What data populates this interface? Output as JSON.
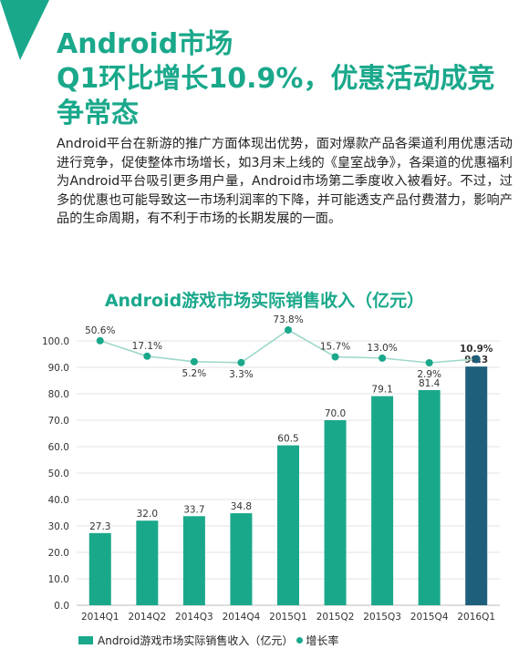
{
  "header": {
    "title_lines": [
      "Android市场",
      "Q1环比增长10.9%，优惠活动成竞",
      "争常态"
    ]
  },
  "paragraph": "Android平台在新游的推广方面体现出优势，面对爆款产品各渠道利用优惠活动进行竞争，促使整体市场增长，如3月末上线的《皇室战争》，各渠道的优惠福利为Android平台吸引更多用户量，Android市场第二季度收入被看好。不过，过多的优惠也可能导致这一市场利润率的下降，并可能透支产品付费潜力，影响产品的生命周期，有不利于市场的长期发展的一面。",
  "colors": {
    "accent": "#1aa88b",
    "highlight_bar": "#1e5f7b",
    "line": "#9fd7cb",
    "grid": "#e3e3e3"
  },
  "chart_data": {
    "type": "bar",
    "title": "Android游戏市场实际销售收入（亿元）",
    "categories": [
      "2014Q1",
      "2014Q2",
      "2014Q3",
      "2014Q4",
      "2015Q1",
      "2015Q2",
      "2015Q3",
      "2015Q4",
      "2016Q1"
    ],
    "ylim": [
      0,
      100
    ],
    "yticks": [
      "0.0",
      "10.0",
      "20.0",
      "30.0",
      "40.0",
      "50.0",
      "60.0",
      "70.0",
      "80.0",
      "90.0",
      "100.0"
    ],
    "series": [
      {
        "name": "Android游戏市场实际销售收入（亿元）",
        "type": "bar",
        "values": [
          27.3,
          32.0,
          33.7,
          34.8,
          60.5,
          70.0,
          79.1,
          81.4,
          90.3
        ],
        "labels": [
          "27.3",
          "32.0",
          "33.7",
          "34.8",
          "60.5",
          "70.0",
          "79.1",
          "81.4",
          "90.3"
        ],
        "highlight_index": 8
      },
      {
        "name": "增长率",
        "type": "line",
        "values": [
          50.6,
          17.1,
          5.2,
          3.3,
          73.8,
          15.7,
          13.0,
          2.9,
          10.9
        ],
        "labels": [
          "50.6%",
          "17.1%",
          "5.2%",
          "3.3%",
          "73.8%",
          "15.7%",
          "13.0%",
          "2.9%",
          "10.9%"
        ],
        "highlight_index": 8
      }
    ],
    "legend_position": "bottom-left",
    "grid": true
  }
}
